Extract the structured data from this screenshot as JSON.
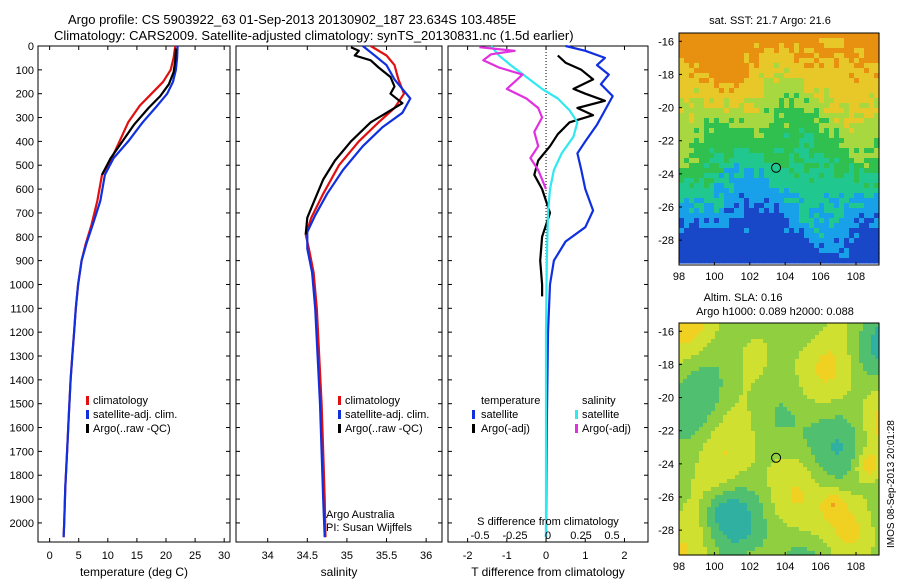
{
  "header": {
    "title_line1": "Argo profile: CS 5903922_63 01-Sep-2013 20130902_187 23.634S 103.485E",
    "title_line2": "Climatology: CARS2009. Satellite-adjusted climatology: synTS_20130831.nc (1.5d earlier)"
  },
  "footer": {
    "credit_line1": "Argo Australia",
    "credit_line2": "PI: Susan Wijffels",
    "stamp": "IMOS 08-Sep-2013 20:01:28"
  },
  "colors": {
    "climatology": "#e01010",
    "satellite": "#1030e0",
    "argo": "#000000",
    "satellite_salinity": "#30e8f0",
    "argo_salinity": "#e030e0"
  },
  "chart_data": [
    {
      "type": "line",
      "id": "temperature",
      "xlabel": "temperature (deg C)",
      "ylabel": "",
      "xlim": [
        -2,
        31
      ],
      "ylim": [
        2080,
        0
      ],
      "xticks": [
        0,
        5,
        10,
        15,
        20,
        25,
        30
      ],
      "yticks": [
        0,
        100,
        200,
        300,
        400,
        500,
        600,
        700,
        800,
        900,
        1000,
        1100,
        1200,
        1300,
        1400,
        1500,
        1600,
        1700,
        1800,
        1900,
        2000
      ],
      "legend": [
        "climatology",
        "satellite-adj. clim.",
        "Argo(..raw -QC)"
      ],
      "series": [
        {
          "name": "climatology",
          "color": "#e01010",
          "points": [
            [
              21.6,
              0
            ],
            [
              21.3,
              50
            ],
            [
              20.8,
              100
            ],
            [
              19.5,
              150
            ],
            [
              17.5,
              200
            ],
            [
              15.5,
              250
            ],
            [
              13.5,
              320
            ],
            [
              12,
              400
            ],
            [
              10.5,
              480
            ],
            [
              9,
              540
            ],
            [
              8.2,
              650
            ],
            [
              7.2,
              750
            ],
            [
              6.2,
              830
            ],
            [
              5.5,
              900
            ],
            [
              4.9,
              1000
            ],
            [
              4.5,
              1100
            ],
            [
              4.2,
              1200
            ],
            [
              3.9,
              1300
            ],
            [
              3.6,
              1400
            ],
            [
              3.3,
              1550
            ],
            [
              3.0,
              1700
            ],
            [
              2.7,
              1850
            ],
            [
              2.5,
              2000
            ],
            [
              2.4,
              2060
            ]
          ]
        },
        {
          "name": "satellite-adj. clim.",
          "color": "#1030e0",
          "points": [
            [
              22.0,
              0
            ],
            [
              21.9,
              50
            ],
            [
              21.7,
              100
            ],
            [
              21.2,
              150
            ],
            [
              20.2,
              200
            ],
            [
              18.5,
              250
            ],
            [
              16,
              320
            ],
            [
              13.5,
              400
            ],
            [
              11,
              470
            ],
            [
              9.5,
              540
            ],
            [
              8.7,
              650
            ],
            [
              7.4,
              750
            ],
            [
              6.3,
              830
            ],
            [
              5.5,
              900
            ],
            [
              4.9,
              1000
            ],
            [
              4.5,
              1100
            ],
            [
              4.2,
              1200
            ],
            [
              3.9,
              1300
            ],
            [
              3.6,
              1400
            ],
            [
              3.3,
              1550
            ],
            [
              3.0,
              1700
            ],
            [
              2.7,
              1850
            ],
            [
              2.5,
              2000
            ],
            [
              2.4,
              2060
            ]
          ]
        },
        {
          "name": "Argo(..raw -QC)",
          "color": "#000000",
          "points": [
            [
              21.7,
              10
            ],
            [
              21.6,
              60
            ],
            [
              21.3,
              110
            ],
            [
              20.5,
              160
            ],
            [
              19,
              210
            ],
            [
              17,
              260
            ],
            [
              14.5,
              330
            ],
            [
              12.5,
              400
            ],
            [
              10.5,
              470
            ],
            [
              9,
              540
            ]
          ]
        }
      ]
    },
    {
      "type": "line",
      "id": "salinity",
      "xlabel": "salinity",
      "ylabel": "",
      "xlim": [
        33.6,
        36.2
      ],
      "ylim": [
        2080,
        0
      ],
      "xticks": [
        34,
        34.5,
        35,
        35.5,
        36
      ],
      "legend": [
        "climatology",
        "satellite-adj. clim.",
        "Argo(..raw -QC)"
      ],
      "series": [
        {
          "name": "climatology",
          "color": "#e01010",
          "points": [
            [
              35.3,
              0
            ],
            [
              35.5,
              40
            ],
            [
              35.6,
              80
            ],
            [
              35.65,
              140
            ],
            [
              35.72,
              200
            ],
            [
              35.6,
              260
            ],
            [
              35.4,
              320
            ],
            [
              35.15,
              400
            ],
            [
              34.9,
              500
            ],
            [
              34.7,
              620
            ],
            [
              34.55,
              720
            ],
            [
              34.48,
              790
            ],
            [
              34.52,
              850
            ],
            [
              34.58,
              950
            ],
            [
              34.62,
              1100
            ],
            [
              34.65,
              1300
            ],
            [
              34.68,
              1500
            ],
            [
              34.7,
              1700
            ],
            [
              34.72,
              1900
            ],
            [
              34.73,
              2060
            ]
          ]
        },
        {
          "name": "satellite-adj. clim.",
          "color": "#1030e0",
          "points": [
            [
              35.2,
              0
            ],
            [
              35.35,
              40
            ],
            [
              35.5,
              80
            ],
            [
              35.6,
              140
            ],
            [
              35.8,
              220
            ],
            [
              35.7,
              280
            ],
            [
              35.45,
              340
            ],
            [
              35.2,
              420
            ],
            [
              34.95,
              520
            ],
            [
              34.75,
              620
            ],
            [
              34.6,
              710
            ],
            [
              34.5,
              780
            ],
            [
              34.5,
              850
            ],
            [
              34.56,
              950
            ],
            [
              34.6,
              1100
            ],
            [
              34.63,
              1300
            ],
            [
              34.66,
              1500
            ],
            [
              34.68,
              1700
            ],
            [
              34.7,
              1900
            ],
            [
              34.72,
              2060
            ]
          ]
        },
        {
          "name": "Argo(..raw -QC)",
          "color": "#000000",
          "points": [
            [
              35.05,
              5
            ],
            [
              35.15,
              20
            ],
            [
              35.1,
              40
            ],
            [
              35.3,
              60
            ],
            [
              35.4,
              90
            ],
            [
              35.55,
              130
            ],
            [
              35.6,
              170
            ],
            [
              35.55,
              200
            ],
            [
              35.7,
              240
            ],
            [
              35.5,
              280
            ],
            [
              35.3,
              320
            ],
            [
              35.05,
              400
            ],
            [
              34.85,
              480
            ],
            [
              34.7,
              560
            ],
            [
              34.6,
              640
            ],
            [
              34.5,
              720
            ],
            [
              34.48,
              790
            ]
          ]
        }
      ]
    },
    {
      "type": "line",
      "id": "difference",
      "xlabel": "T difference from climatology",
      "xlabel_top": "S difference from climatology",
      "xlim": [
        -2.5,
        2.6
      ],
      "ylim": [
        2080,
        0
      ],
      "xticks_t": [
        -2,
        -1,
        0,
        1,
        2
      ],
      "xticks_s": [
        "-0.5",
        "-0.25",
        "0",
        "0.25",
        "0.5"
      ],
      "legend_temperature_title": "temperature",
      "legend_salinity_title": "salinity",
      "legend_temperature": [
        "satellite",
        "Argo(-adj)"
      ],
      "legend_salinity": [
        "satellite",
        "Argo(-adj)"
      ],
      "series": [
        {
          "name": "satellite",
          "group": "temperature",
          "color": "#1030e0",
          "points": [
            [
              0.5,
              0
            ],
            [
              1.0,
              20
            ],
            [
              1.5,
              50
            ],
            [
              1.3,
              80
            ],
            [
              1.6,
              120
            ],
            [
              1.4,
              160
            ],
            [
              1.7,
              210
            ],
            [
              1.5,
              270
            ],
            [
              1.3,
              330
            ],
            [
              1.0,
              400
            ],
            [
              0.8,
              450
            ],
            [
              0.9,
              520
            ],
            [
              1.0,
              600
            ],
            [
              1.2,
              690
            ],
            [
              1.0,
              760
            ],
            [
              0.5,
              820
            ],
            [
              0.2,
              900
            ],
            [
              0.1,
              1000
            ],
            [
              0.05,
              1200
            ],
            [
              0.02,
              1600
            ],
            [
              0,
              2060
            ]
          ]
        },
        {
          "name": "Argo(-adj)",
          "group": "temperature",
          "color": "#000000",
          "points": [
            [
              0.3,
              40
            ],
            [
              0.5,
              70
            ],
            [
              0.9,
              100
            ],
            [
              1.2,
              140
            ],
            [
              0.7,
              180
            ],
            [
              1.0,
              200
            ],
            [
              1.5,
              230
            ],
            [
              0.8,
              260
            ],
            [
              1.2,
              290
            ],
            [
              0.6,
              320
            ],
            [
              0.3,
              370
            ],
            [
              0.1,
              420
            ],
            [
              -0.2,
              480
            ],
            [
              -0.3,
              540
            ],
            [
              -0.1,
              600
            ],
            [
              0.1,
              700
            ],
            [
              -0.1,
              800
            ],
            [
              -0.15,
              900
            ],
            [
              -0.1,
              1000
            ],
            [
              -0.1,
              1050
            ]
          ]
        },
        {
          "name": "satellite",
          "group": "salinity",
          "color": "#30e8f0",
          "points": [
            [
              -1.4,
              0
            ],
            [
              -1.2,
              40
            ],
            [
              -0.9,
              80
            ],
            [
              -0.5,
              130
            ],
            [
              -0.1,
              180
            ],
            [
              0.3,
              220
            ],
            [
              0.6,
              270
            ],
            [
              0.8,
              320
            ],
            [
              0.7,
              380
            ],
            [
              0.4,
              450
            ],
            [
              0.2,
              520
            ],
            [
              0.1,
              600
            ],
            [
              0.05,
              700
            ],
            [
              0.02,
              900
            ],
            [
              0,
              1200
            ],
            [
              0,
              2060
            ]
          ]
        },
        {
          "name": "Argo(-adj)",
          "group": "salinity",
          "color": "#e030e0",
          "points": [
            [
              -1.7,
              5
            ],
            [
              -0.8,
              20
            ],
            [
              -1.4,
              35
            ],
            [
              -1.6,
              60
            ],
            [
              -1.2,
              90
            ],
            [
              -0.6,
              120
            ],
            [
              -0.8,
              150
            ],
            [
              -1.0,
              180
            ],
            [
              -0.5,
              220
            ],
            [
              -0.2,
              260
            ],
            [
              -0.1,
              300
            ],
            [
              -0.3,
              360
            ],
            [
              -0.2,
              420
            ],
            [
              -0.4,
              470
            ],
            [
              -0.2,
              520
            ],
            [
              -0.1,
              560
            ],
            [
              0,
              600
            ]
          ]
        }
      ]
    },
    {
      "type": "heatmap",
      "id": "sst_map",
      "title": "sat. SST: 21.7  Argo: 21.6",
      "xlim": [
        98,
        109.3
      ],
      "ylim": [
        -29.5,
        -15.5
      ],
      "xticks": [
        98,
        100,
        102,
        104,
        106,
        108
      ],
      "yticks": [
        -16,
        -18,
        -20,
        -22,
        -24,
        -26,
        -28
      ],
      "marker": {
        "lon": 103.485,
        "lat": -23.634
      },
      "palette": [
        "#1848c8",
        "#18a0e8",
        "#20c890",
        "#30c050",
        "#a8d840",
        "#e8c828",
        "#e89010"
      ]
    },
    {
      "type": "heatmap",
      "id": "sla_map",
      "title": "Altim. SLA: 0.16",
      "subtitle": "Argo h1000: 0.089  h2000: 0.088",
      "xlim": [
        98,
        109.3
      ],
      "ylim": [
        -29.5,
        -15.5
      ],
      "xticks": [
        98,
        100,
        102,
        104,
        106,
        108
      ],
      "yticks": [
        -16,
        -18,
        -20,
        -22,
        -24,
        -26,
        -28
      ],
      "marker": {
        "lon": 103.485,
        "lat": -23.634
      },
      "palette": [
        "#30b0a0",
        "#50c070",
        "#90d040",
        "#d0e030",
        "#f0d020",
        "#f0a020"
      ]
    }
  ]
}
